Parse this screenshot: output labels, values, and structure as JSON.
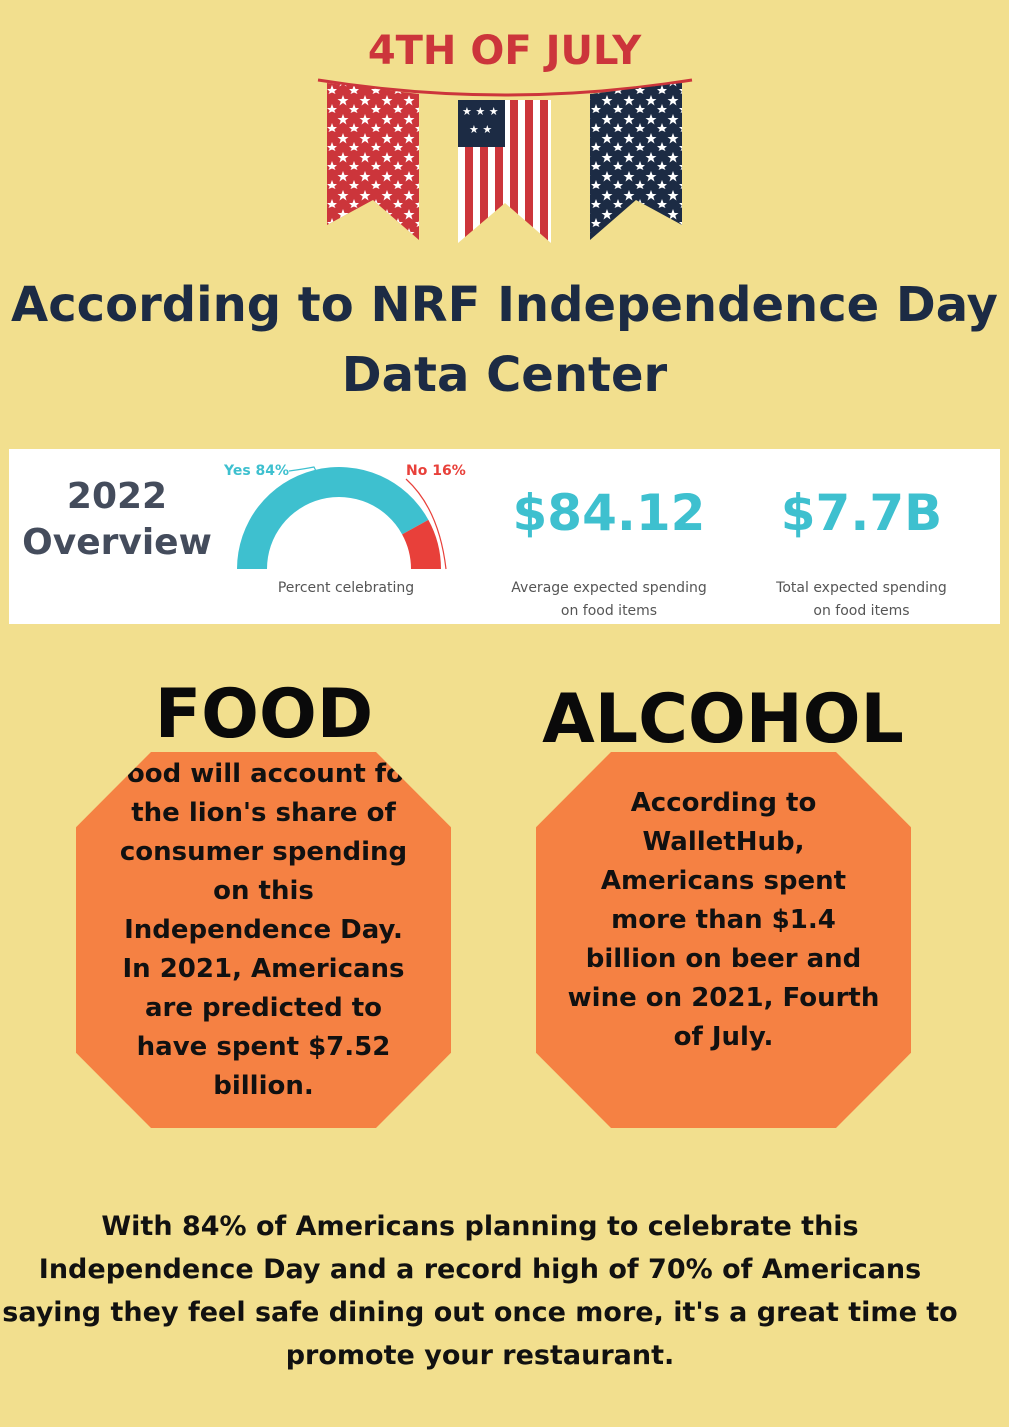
{
  "header": {
    "title": "4TH OF JULY"
  },
  "headline": {
    "line1": "According to NRF Independence Day",
    "line2": "Data Center"
  },
  "overview": {
    "title_year": "2022",
    "title_word": "Overview",
    "gauge": {
      "yes_label": "Yes 84%",
      "no_label": "No 16%",
      "yes_percent": 84,
      "no_percent": 16,
      "caption": "Percent celebrating"
    },
    "stat1": {
      "value": "$84.12",
      "caption_line1": "Average expected spending",
      "caption_line2": "on food items"
    },
    "stat2": {
      "value": "$7.7B",
      "caption_line1": "Total expected spending",
      "caption_line2": "on food items"
    }
  },
  "food": {
    "heading": "FOOD",
    "text1": "Food will account for the lion's share of consumer spending on this Independence Day.",
    "text2": "In 2021, Americans are predicted to have spent $7.52 billion."
  },
  "alcohol": {
    "heading": "ALCOHOL",
    "text": "According to WalletHub, Americans spent more than $1.4 billion on beer and wine on 2021, Fourth of July."
  },
  "footer": {
    "text": "With 84% of Americans planning to celebrate this Independence Day and a record high of 70% of Americans saying they feel safe dining out once more, it's a great time to promote your restaurant."
  },
  "colors": {
    "background": "#f2df8e",
    "red": "#cc353b",
    "navy": "#1c2b44",
    "orange": "#f58143",
    "teal": "#3ec0cf",
    "gauge_red": "#e8403a"
  }
}
